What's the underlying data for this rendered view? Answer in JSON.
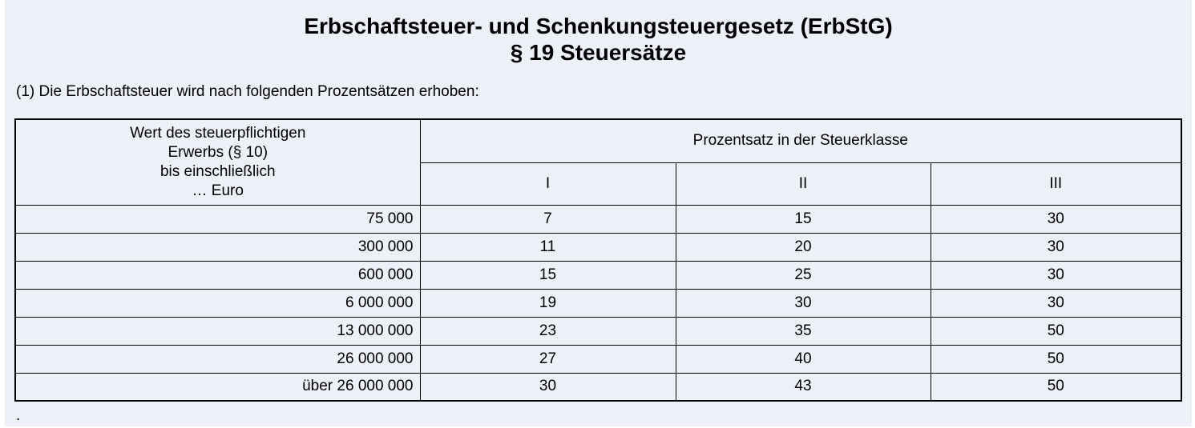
{
  "page": {
    "title_line1": "Erbschaftsteuer- und Schenkungsteuergesetz (ErbStG)",
    "title_line2": "§ 19 Steuersätze",
    "intro": "(1) Die Erbschaftsteuer wird nach folgenden Prozentsätzen erhoben:",
    "trailing_period": "."
  },
  "colors": {
    "background": "#edf0f7",
    "border": "#000000",
    "text": "#000000"
  },
  "table": {
    "value_column_header_lines": [
      "Wert des steuerpflichtigen",
      "Erwerbs (§ 10)",
      "bis einschließlich",
      "… Euro"
    ],
    "group_header": "Prozentsatz in der Steuerklasse",
    "class_headers": [
      "I",
      "II",
      "III"
    ],
    "rows": [
      {
        "wert": "75 000",
        "k1": "7",
        "k2": "15",
        "k3": "30"
      },
      {
        "wert": "300 000",
        "k1": "11",
        "k2": "20",
        "k3": "30"
      },
      {
        "wert": "600 000",
        "k1": "15",
        "k2": "25",
        "k3": "30"
      },
      {
        "wert": "6 000 000",
        "k1": "19",
        "k2": "30",
        "k3": "30"
      },
      {
        "wert": "13 000 000",
        "k1": "23",
        "k2": "35",
        "k3": "50"
      },
      {
        "wert": "26 000 000",
        "k1": "27",
        "k2": "40",
        "k3": "50"
      },
      {
        "wert": "über 26 000 000",
        "k1": "30",
        "k2": "43",
        "k3": "50"
      }
    ]
  }
}
